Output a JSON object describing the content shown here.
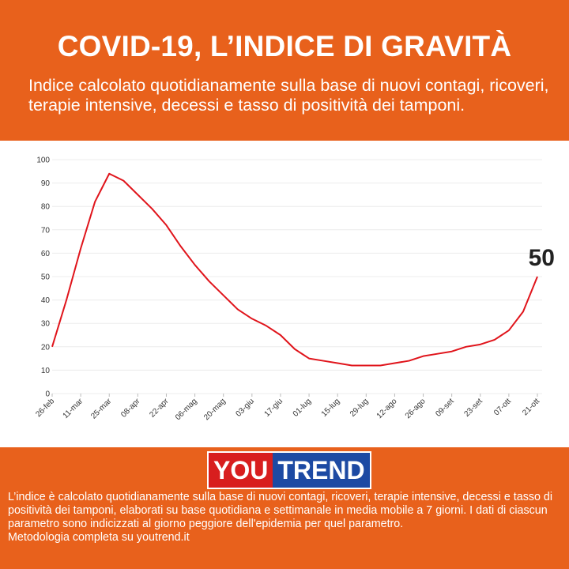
{
  "header": {
    "title": "COVID-19, L’INDICE DI GRAVITÀ",
    "subtitle": "Indice calcolato quotidianamente sulla base di nuovi contagi, ricoveri, terapie intensive, decessi e tasso di positività dei tamponi."
  },
  "chart_data": {
    "type": "line",
    "color": "#e0141b",
    "grid": true,
    "categories": [
      "26-feb",
      null,
      "11-mar",
      null,
      "25-mar",
      null,
      "08-apr",
      null,
      "22-apr",
      null,
      "06-mag",
      null,
      "20-mag",
      null,
      "03-giu",
      null,
      "17-giu",
      null,
      "01-lug",
      null,
      "15-lug",
      null,
      "29-lug",
      null,
      "12-ago",
      null,
      "26-ago",
      null,
      "09-set",
      null,
      "23-set",
      null,
      "07-ott",
      null,
      "21-ott"
    ],
    "values": [
      20,
      40,
      62,
      82,
      94,
      91,
      85,
      79,
      72,
      63,
      55,
      48,
      42,
      36,
      32,
      29,
      25,
      19,
      15,
      14,
      13,
      12,
      12,
      12,
      13,
      14,
      16,
      17,
      18,
      20,
      21,
      23,
      27,
      35,
      50
    ],
    "ylim": [
      0,
      100
    ],
    "yticks": [
      0,
      10,
      20,
      30,
      40,
      50,
      60,
      70,
      80,
      90,
      100
    ]
  },
  "logo": {
    "left": "YOU",
    "right": "TREND"
  },
  "footer": {
    "note": "L’indice è calcolato quotidianamente sulla base di nuovi contagi, ricoveri, terapie intensive, decessi e tasso di positività dei tamponi, elaborati su base quotidiana e settimanale in media mobile a 7 giorni. I dati di ciascun parametro sono indicizzati al giorno peggiore dell'epidemia per quel parametro.",
    "link": "Metodologia completa su youtrend.it"
  }
}
